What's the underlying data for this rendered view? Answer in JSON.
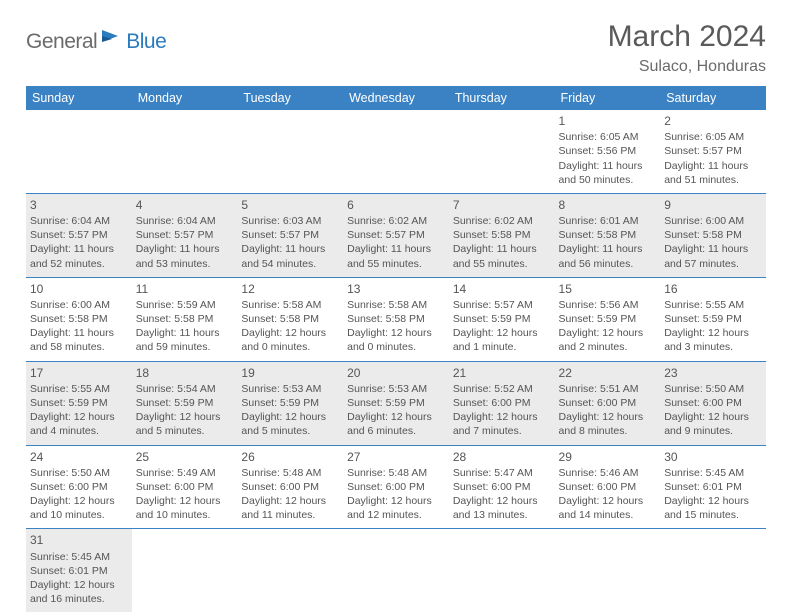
{
  "logo": {
    "general": "General",
    "blue": "Blue"
  },
  "title": "March 2024",
  "location": "Sulaco, Honduras",
  "colors": {
    "header_bg": "#3a82c4",
    "header_text": "#ffffff",
    "alt_row_bg": "#ebebeb",
    "border": "#3a82c4",
    "text": "#555555",
    "logo_blue": "#2b7bbf",
    "logo_gray": "#6b6b6b"
  },
  "day_headers": [
    "Sunday",
    "Monday",
    "Tuesday",
    "Wednesday",
    "Thursday",
    "Friday",
    "Saturday"
  ],
  "weeks": [
    {
      "alt": false,
      "cells": [
        {
          "empty": true
        },
        {
          "empty": true
        },
        {
          "empty": true
        },
        {
          "empty": true
        },
        {
          "empty": true
        },
        {
          "num": "1",
          "sunrise": "Sunrise: 6:05 AM",
          "sunset": "Sunset: 5:56 PM",
          "daylight": "Daylight: 11 hours and 50 minutes."
        },
        {
          "num": "2",
          "sunrise": "Sunrise: 6:05 AM",
          "sunset": "Sunset: 5:57 PM",
          "daylight": "Daylight: 11 hours and 51 minutes."
        }
      ]
    },
    {
      "alt": true,
      "cells": [
        {
          "num": "3",
          "sunrise": "Sunrise: 6:04 AM",
          "sunset": "Sunset: 5:57 PM",
          "daylight": "Daylight: 11 hours and 52 minutes."
        },
        {
          "num": "4",
          "sunrise": "Sunrise: 6:04 AM",
          "sunset": "Sunset: 5:57 PM",
          "daylight": "Daylight: 11 hours and 53 minutes."
        },
        {
          "num": "5",
          "sunrise": "Sunrise: 6:03 AM",
          "sunset": "Sunset: 5:57 PM",
          "daylight": "Daylight: 11 hours and 54 minutes."
        },
        {
          "num": "6",
          "sunrise": "Sunrise: 6:02 AM",
          "sunset": "Sunset: 5:57 PM",
          "daylight": "Daylight: 11 hours and 55 minutes."
        },
        {
          "num": "7",
          "sunrise": "Sunrise: 6:02 AM",
          "sunset": "Sunset: 5:58 PM",
          "daylight": "Daylight: 11 hours and 55 minutes."
        },
        {
          "num": "8",
          "sunrise": "Sunrise: 6:01 AM",
          "sunset": "Sunset: 5:58 PM",
          "daylight": "Daylight: 11 hours and 56 minutes."
        },
        {
          "num": "9",
          "sunrise": "Sunrise: 6:00 AM",
          "sunset": "Sunset: 5:58 PM",
          "daylight": "Daylight: 11 hours and 57 minutes."
        }
      ]
    },
    {
      "alt": false,
      "cells": [
        {
          "num": "10",
          "sunrise": "Sunrise: 6:00 AM",
          "sunset": "Sunset: 5:58 PM",
          "daylight": "Daylight: 11 hours and 58 minutes."
        },
        {
          "num": "11",
          "sunrise": "Sunrise: 5:59 AM",
          "sunset": "Sunset: 5:58 PM",
          "daylight": "Daylight: 11 hours and 59 minutes."
        },
        {
          "num": "12",
          "sunrise": "Sunrise: 5:58 AM",
          "sunset": "Sunset: 5:58 PM",
          "daylight": "Daylight: 12 hours and 0 minutes."
        },
        {
          "num": "13",
          "sunrise": "Sunrise: 5:58 AM",
          "sunset": "Sunset: 5:58 PM",
          "daylight": "Daylight: 12 hours and 0 minutes."
        },
        {
          "num": "14",
          "sunrise": "Sunrise: 5:57 AM",
          "sunset": "Sunset: 5:59 PM",
          "daylight": "Daylight: 12 hours and 1 minute."
        },
        {
          "num": "15",
          "sunrise": "Sunrise: 5:56 AM",
          "sunset": "Sunset: 5:59 PM",
          "daylight": "Daylight: 12 hours and 2 minutes."
        },
        {
          "num": "16",
          "sunrise": "Sunrise: 5:55 AM",
          "sunset": "Sunset: 5:59 PM",
          "daylight": "Daylight: 12 hours and 3 minutes."
        }
      ]
    },
    {
      "alt": true,
      "cells": [
        {
          "num": "17",
          "sunrise": "Sunrise: 5:55 AM",
          "sunset": "Sunset: 5:59 PM",
          "daylight": "Daylight: 12 hours and 4 minutes."
        },
        {
          "num": "18",
          "sunrise": "Sunrise: 5:54 AM",
          "sunset": "Sunset: 5:59 PM",
          "daylight": "Daylight: 12 hours and 5 minutes."
        },
        {
          "num": "19",
          "sunrise": "Sunrise: 5:53 AM",
          "sunset": "Sunset: 5:59 PM",
          "daylight": "Daylight: 12 hours and 5 minutes."
        },
        {
          "num": "20",
          "sunrise": "Sunrise: 5:53 AM",
          "sunset": "Sunset: 5:59 PM",
          "daylight": "Daylight: 12 hours and 6 minutes."
        },
        {
          "num": "21",
          "sunrise": "Sunrise: 5:52 AM",
          "sunset": "Sunset: 6:00 PM",
          "daylight": "Daylight: 12 hours and 7 minutes."
        },
        {
          "num": "22",
          "sunrise": "Sunrise: 5:51 AM",
          "sunset": "Sunset: 6:00 PM",
          "daylight": "Daylight: 12 hours and 8 minutes."
        },
        {
          "num": "23",
          "sunrise": "Sunrise: 5:50 AM",
          "sunset": "Sunset: 6:00 PM",
          "daylight": "Daylight: 12 hours and 9 minutes."
        }
      ]
    },
    {
      "alt": false,
      "cells": [
        {
          "num": "24",
          "sunrise": "Sunrise: 5:50 AM",
          "sunset": "Sunset: 6:00 PM",
          "daylight": "Daylight: 12 hours and 10 minutes."
        },
        {
          "num": "25",
          "sunrise": "Sunrise: 5:49 AM",
          "sunset": "Sunset: 6:00 PM",
          "daylight": "Daylight: 12 hours and 10 minutes."
        },
        {
          "num": "26",
          "sunrise": "Sunrise: 5:48 AM",
          "sunset": "Sunset: 6:00 PM",
          "daylight": "Daylight: 12 hours and 11 minutes."
        },
        {
          "num": "27",
          "sunrise": "Sunrise: 5:48 AM",
          "sunset": "Sunset: 6:00 PM",
          "daylight": "Daylight: 12 hours and 12 minutes."
        },
        {
          "num": "28",
          "sunrise": "Sunrise: 5:47 AM",
          "sunset": "Sunset: 6:00 PM",
          "daylight": "Daylight: 12 hours and 13 minutes."
        },
        {
          "num": "29",
          "sunrise": "Sunrise: 5:46 AM",
          "sunset": "Sunset: 6:00 PM",
          "daylight": "Daylight: 12 hours and 14 minutes."
        },
        {
          "num": "30",
          "sunrise": "Sunrise: 5:45 AM",
          "sunset": "Sunset: 6:01 PM",
          "daylight": "Daylight: 12 hours and 15 minutes."
        }
      ]
    },
    {
      "alt": true,
      "last": true,
      "cells": [
        {
          "num": "31",
          "sunrise": "Sunrise: 5:45 AM",
          "sunset": "Sunset: 6:01 PM",
          "daylight": "Daylight: 12 hours and 16 minutes."
        },
        {
          "empty": true
        },
        {
          "empty": true
        },
        {
          "empty": true
        },
        {
          "empty": true
        },
        {
          "empty": true
        },
        {
          "empty": true
        }
      ]
    }
  ]
}
